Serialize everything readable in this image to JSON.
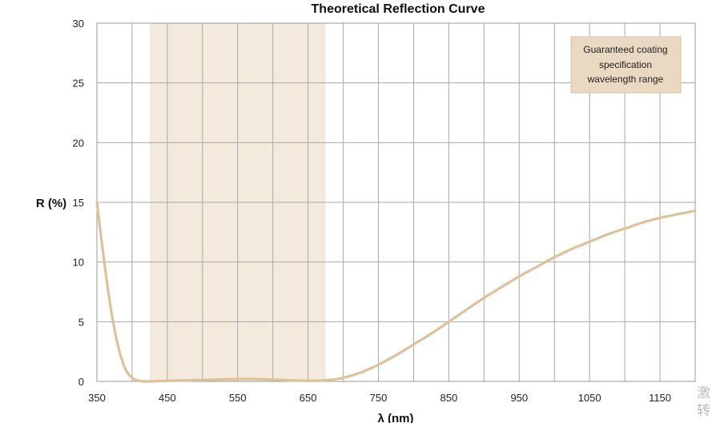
{
  "chart_data": {
    "type": "line",
    "title": "Theoretical Reflection Curve",
    "xlabel": "λ (nm)",
    "ylabel": "R (%)",
    "xlim": [
      350,
      1200
    ],
    "ylim": [
      0,
      30
    ],
    "x_ticks": [
      350,
      450,
      550,
      650,
      750,
      850,
      950,
      1050,
      1150
    ],
    "y_ticks": [
      0,
      5,
      10,
      15,
      20,
      25,
      30
    ],
    "grid": true,
    "highlight_band": {
      "x_range": [
        425,
        675
      ],
      "label": "Guaranteed coating specification wavelength range",
      "label_lines": [
        "Guaranteed coating",
        "specification",
        "wavelength range"
      ],
      "color": "#f3e9dd"
    },
    "series": [
      {
        "color": "#dcc19a",
        "points": [
          [
            350,
            15.0
          ],
          [
            360,
            10.2
          ],
          [
            370,
            6.0
          ],
          [
            380,
            3.0
          ],
          [
            390,
            1.1
          ],
          [
            400,
            0.3
          ],
          [
            410,
            0.05
          ],
          [
            425,
            0.0
          ],
          [
            450,
            0.05
          ],
          [
            500,
            0.12
          ],
          [
            550,
            0.2
          ],
          [
            575,
            0.2
          ],
          [
            600,
            0.15
          ],
          [
            650,
            0.05
          ],
          [
            675,
            0.1
          ],
          [
            700,
            0.3
          ],
          [
            725,
            0.75
          ],
          [
            750,
            1.4
          ],
          [
            775,
            2.2
          ],
          [
            800,
            3.1
          ],
          [
            825,
            4.0
          ],
          [
            850,
            5.0
          ],
          [
            875,
            6.0
          ],
          [
            900,
            7.0
          ],
          [
            925,
            7.9
          ],
          [
            950,
            8.8
          ],
          [
            975,
            9.6
          ],
          [
            1000,
            10.4
          ],
          [
            1025,
            11.1
          ],
          [
            1050,
            11.7
          ],
          [
            1075,
            12.3
          ],
          [
            1100,
            12.8
          ],
          [
            1125,
            13.3
          ],
          [
            1150,
            13.7
          ],
          [
            1175,
            14.0
          ],
          [
            1200,
            14.3
          ]
        ]
      }
    ]
  },
  "watermark": {
    "line1": "激",
    "line2": "转"
  }
}
